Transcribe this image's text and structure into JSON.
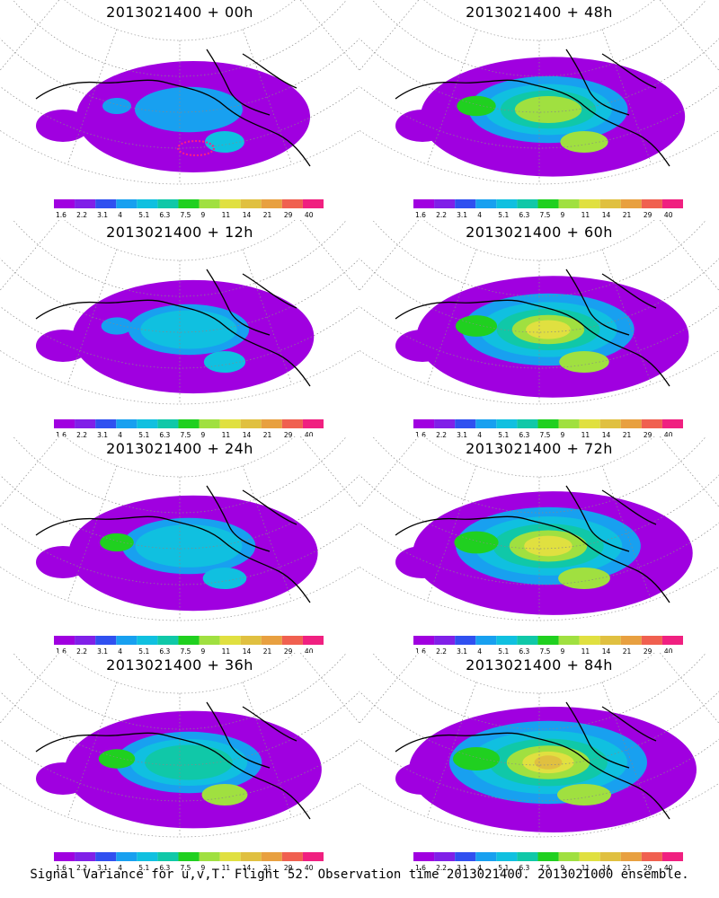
{
  "footer": "Signal Variance for u,v,T. Flight 52. Observation time 2013021400. 2013021000 ensemble.",
  "colorbar": {
    "labels": [
      "1.6",
      "2.2",
      "3.1",
      "4",
      "5.1",
      "6.3",
      "7.5",
      "9",
      "11",
      "14",
      "21",
      "29",
      "40"
    ],
    "colors": [
      "#a000e0",
      "#8020e8",
      "#3050f0",
      "#18a0f0",
      "#10c0e0",
      "#10c8a8",
      "#20d020",
      "#a0e040",
      "#e0e040",
      "#e0c040",
      "#e8a040",
      "#f06050",
      "#f02080"
    ]
  },
  "chart_data": [
    {
      "type": "heatmap",
      "title": "2013021400 + 00h",
      "lead_hours": 0,
      "map": "polar stereographic North Pacific / North America"
    },
    {
      "type": "heatmap",
      "title": "2013021400 + 48h",
      "lead_hours": 48,
      "map": "polar stereographic North Pacific / North America"
    },
    {
      "type": "heatmap",
      "title": "2013021400 + 12h",
      "lead_hours": 12,
      "map": "polar stereographic North Pacific / North America"
    },
    {
      "type": "heatmap",
      "title": "2013021400 + 60h",
      "lead_hours": 60,
      "map": "polar stereographic North Pacific / North America"
    },
    {
      "type": "heatmap",
      "title": "2013021400 + 24h",
      "lead_hours": 24,
      "map": "polar stereographic North Pacific / North America"
    },
    {
      "type": "heatmap",
      "title": "2013021400 + 72h",
      "lead_hours": 72,
      "map": "polar stereographic North Pacific / North America"
    },
    {
      "type": "heatmap",
      "title": "2013021400 + 36h",
      "lead_hours": 36,
      "map": "polar stereographic North Pacific / North America"
    },
    {
      "type": "heatmap",
      "title": "2013021400 + 84h",
      "lead_hours": 84,
      "map": "polar stereographic North Pacific / North America"
    }
  ]
}
